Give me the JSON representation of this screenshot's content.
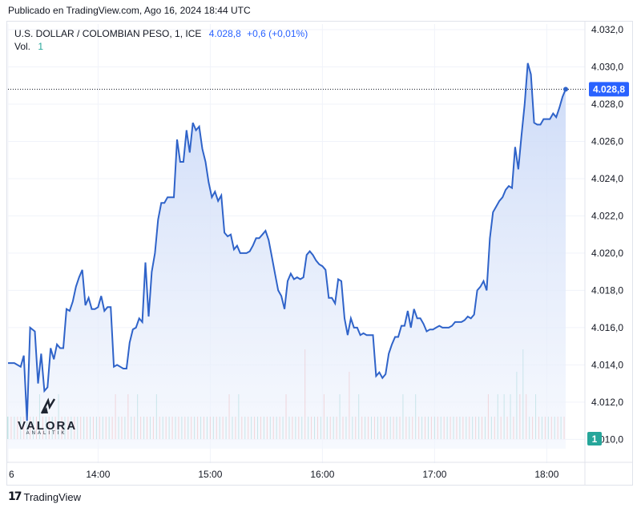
{
  "header": {
    "published": "Publicado en TradingView.com, Ago 16, 2024 18:44 UTC"
  },
  "legend": {
    "symbol": "U.S. DOLLAR / COLOMBIAN PESO, 1, ICE",
    "last": "4.028,8",
    "change": "+0,6 (+0,01%)",
    "vol_label": "Vol.",
    "vol_value": "1"
  },
  "price_label": "4.028,8",
  "volume_label": "1",
  "watermark": {
    "name": "VALORA",
    "sub": "ANALITIK"
  },
  "footer": {
    "brand": "TradingView"
  },
  "colors": {
    "line": "#2f63c9",
    "fill_top": "#c9d8f7",
    "fill_bottom": "#f1f5fd",
    "up": "#26a69a",
    "down": "#ef5350",
    "price_tag": "#2962ff"
  },
  "chart_data": {
    "type": "area",
    "y_ticks": [
      "4.032,0",
      "4.030,0",
      "4.028,0",
      "4.026,0",
      "4.024,0",
      "4.022,0",
      "4.020,0",
      "4.018,0",
      "4.016,0",
      "4.014,0",
      "4.012,0",
      "4.010,0"
    ],
    "x_ticks": [
      "6",
      "14:00",
      "15:00",
      "16:00",
      "17:00",
      "18:00"
    ],
    "ylim": [
      4009.5,
      4032.3
    ],
    "points": [
      [
        0,
        4014.1
      ],
      [
        4,
        4014.1
      ],
      [
        8,
        4013.9
      ],
      [
        10,
        4014.5
      ],
      [
        12,
        4011.0
      ],
      [
        14,
        4016.0
      ],
      [
        17,
        4015.8
      ],
      [
        19,
        4013.0
      ],
      [
        21,
        4014.6
      ],
      [
        23,
        4012.6
      ],
      [
        25,
        4012.8
      ],
      [
        27,
        4014.9
      ],
      [
        29,
        4014.3
      ],
      [
        31,
        4015.1
      ],
      [
        33,
        4014.9
      ],
      [
        35,
        4014.9
      ],
      [
        37,
        4017.0
      ],
      [
        39,
        4016.9
      ],
      [
        41,
        4017.4
      ],
      [
        43,
        4018.2
      ],
      [
        45,
        4018.7
      ],
      [
        47,
        4019.1
      ],
      [
        49,
        4017.2
      ],
      [
        51,
        4017.6
      ],
      [
        53,
        4017.0
      ],
      [
        55,
        4017.0
      ],
      [
        57,
        4017.1
      ],
      [
        59,
        4017.7
      ],
      [
        61,
        4016.9
      ],
      [
        63,
        4017.1
      ],
      [
        65,
        4017.1
      ],
      [
        67,
        4013.9
      ],
      [
        69,
        4014.0
      ],
      [
        71,
        4013.9
      ],
      [
        73,
        4013.8
      ],
      [
        75,
        4013.8
      ],
      [
        77,
        4015.2
      ],
      [
        79,
        4015.9
      ],
      [
        81,
        4016.0
      ],
      [
        83,
        4016.5
      ],
      [
        85,
        4016.3
      ],
      [
        87,
        4019.5
      ],
      [
        89,
        4016.6
      ],
      [
        91,
        4019.0
      ],
      [
        93,
        4020.0
      ],
      [
        95,
        4021.8
      ],
      [
        97,
        4022.7
      ],
      [
        99,
        4022.7
      ],
      [
        101,
        4023.0
      ],
      [
        103,
        4023.0
      ],
      [
        105,
        4023.0
      ],
      [
        107,
        4026.1
      ],
      [
        109,
        4024.9
      ],
      [
        111,
        4024.9
      ],
      [
        113,
        4026.6
      ],
      [
        115,
        4025.4
      ],
      [
        117,
        4027.0
      ],
      [
        119,
        4026.6
      ],
      [
        121,
        4026.8
      ],
      [
        123,
        4025.6
      ],
      [
        125,
        4024.9
      ],
      [
        127,
        4023.8
      ],
      [
        129,
        4023.0
      ],
      [
        131,
        4023.3
      ],
      [
        133,
        4022.8
      ],
      [
        135,
        4023.1
      ],
      [
        137,
        4021.1
      ],
      [
        139,
        4020.9
      ],
      [
        141,
        4021.0
      ],
      [
        143,
        4020.2
      ],
      [
        145,
        4020.4
      ],
      [
        147,
        4020.0
      ],
      [
        149,
        4020.0
      ],
      [
        151,
        4020.0
      ],
      [
        153,
        4020.1
      ],
      [
        155,
        4020.4
      ],
      [
        157,
        4020.8
      ],
      [
        159,
        4020.8
      ],
      [
        161,
        4021.0
      ],
      [
        163,
        4021.2
      ],
      [
        165,
        4020.7
      ],
      [
        167,
        4019.8
      ],
      [
        169,
        4018.9
      ],
      [
        171,
        4018.0
      ],
      [
        173,
        4017.7
      ],
      [
        175,
        4017.0
      ],
      [
        177,
        4018.5
      ],
      [
        179,
        4018.9
      ],
      [
        181,
        4018.6
      ],
      [
        183,
        4018.7
      ],
      [
        185,
        4018.6
      ],
      [
        187,
        4018.7
      ],
      [
        189,
        4019.9
      ],
      [
        191,
        4020.1
      ],
      [
        193,
        4019.9
      ],
      [
        195,
        4019.6
      ],
      [
        197,
        4019.4
      ],
      [
        199,
        4019.3
      ],
      [
        201,
        4019.1
      ],
      [
        203,
        4017.6
      ],
      [
        205,
        4017.6
      ],
      [
        207,
        4017.3
      ],
      [
        209,
        4018.6
      ],
      [
        211,
        4018.5
      ],
      [
        213,
        4016.5
      ],
      [
        215,
        4015.6
      ],
      [
        217,
        4016.5
      ],
      [
        219,
        4016.0
      ],
      [
        221,
        4016.0
      ],
      [
        223,
        4015.6
      ],
      [
        225,
        4015.7
      ],
      [
        227,
        4015.6
      ],
      [
        229,
        4015.6
      ],
      [
        231,
        4015.6
      ],
      [
        233,
        4013.4
      ],
      [
        235,
        4013.6
      ],
      [
        237,
        4013.3
      ],
      [
        239,
        4013.5
      ],
      [
        241,
        4014.6
      ],
      [
        243,
        4015.1
      ],
      [
        245,
        4015.5
      ],
      [
        247,
        4015.5
      ],
      [
        249,
        4016.1
      ],
      [
        251,
        4016.1
      ],
      [
        253,
        4016.9
      ],
      [
        255,
        4016.0
      ],
      [
        257,
        4017.0
      ],
      [
        259,
        4016.5
      ],
      [
        261,
        4016.5
      ],
      [
        263,
        4016.2
      ],
      [
        265,
        4015.8
      ],
      [
        267,
        4015.9
      ],
      [
        269,
        4015.9
      ],
      [
        271,
        4016.0
      ],
      [
        273,
        4016.1
      ],
      [
        275,
        4016.0
      ],
      [
        277,
        4016.0
      ],
      [
        279,
        4016.0
      ],
      [
        281,
        4016.1
      ],
      [
        283,
        4016.3
      ],
      [
        285,
        4016.3
      ],
      [
        287,
        4016.3
      ],
      [
        289,
        4016.4
      ],
      [
        291,
        4016.6
      ],
      [
        293,
        4016.5
      ],
      [
        295,
        4016.7
      ],
      [
        297,
        4018.0
      ],
      [
        299,
        4018.2
      ],
      [
        301,
        4018.5
      ],
      [
        303,
        4018.0
      ],
      [
        305,
        4020.8
      ],
      [
        307,
        4022.2
      ],
      [
        309,
        4022.5
      ],
      [
        311,
        4022.8
      ],
      [
        313,
        4023.0
      ],
      [
        315,
        4023.4
      ],
      [
        317,
        4023.6
      ],
      [
        319,
        4023.5
      ],
      [
        321,
        4025.7
      ],
      [
        323,
        4024.5
      ],
      [
        325,
        4026.3
      ],
      [
        327,
        4028.0
      ],
      [
        329,
        4030.2
      ],
      [
        331,
        4029.6
      ],
      [
        333,
        4027.0
      ],
      [
        335,
        4026.9
      ],
      [
        337,
        4026.9
      ],
      [
        339,
        4027.2
      ],
      [
        341,
        4027.2
      ],
      [
        343,
        4027.2
      ],
      [
        345,
        4027.5
      ],
      [
        347,
        4027.3
      ],
      [
        349,
        4027.8
      ],
      [
        351,
        4028.4
      ],
      [
        353,
        4028.8
      ]
    ],
    "x_range": [
      0,
      354
    ],
    "x_tick_positions": [
      0,
      57,
      128,
      199,
      270,
      341
    ],
    "volume": [
      [
        0,
        1,
        "up"
      ],
      [
        2,
        1,
        "down"
      ],
      [
        4,
        1,
        "up"
      ],
      [
        6,
        1,
        "down"
      ],
      [
        8,
        1,
        "up"
      ],
      [
        10,
        1,
        "down"
      ],
      [
        12,
        1,
        "up"
      ],
      [
        14,
        1,
        "down"
      ],
      [
        16,
        1,
        "up"
      ],
      [
        18,
        1,
        "down"
      ],
      [
        20,
        2,
        "up"
      ],
      [
        22,
        1,
        "down"
      ],
      [
        24,
        1,
        "up"
      ],
      [
        26,
        1,
        "down"
      ],
      [
        28,
        1,
        "up"
      ],
      [
        30,
        1,
        "down"
      ],
      [
        32,
        2,
        "up"
      ],
      [
        34,
        1,
        "down"
      ],
      [
        36,
        1,
        "up"
      ],
      [
        38,
        1,
        "down"
      ],
      [
        40,
        1,
        "up"
      ],
      [
        42,
        1,
        "down"
      ],
      [
        44,
        1,
        "up"
      ],
      [
        46,
        1,
        "down"
      ],
      [
        48,
        1,
        "up"
      ],
      [
        50,
        1,
        "down"
      ],
      [
        52,
        1,
        "up"
      ],
      [
        54,
        1,
        "down"
      ],
      [
        56,
        1,
        "up"
      ],
      [
        58,
        1,
        "down"
      ],
      [
        60,
        1,
        "up"
      ],
      [
        62,
        1,
        "down"
      ],
      [
        64,
        1,
        "up"
      ],
      [
        66,
        1,
        "down"
      ],
      [
        68,
        2,
        "down"
      ],
      [
        70,
        1,
        "up"
      ],
      [
        72,
        1,
        "down"
      ],
      [
        74,
        1,
        "up"
      ],
      [
        76,
        2,
        "down"
      ],
      [
        78,
        1,
        "up"
      ],
      [
        80,
        1,
        "down"
      ],
      [
        82,
        2,
        "up"
      ],
      [
        84,
        1,
        "down"
      ],
      [
        86,
        1,
        "up"
      ],
      [
        88,
        1,
        "down"
      ],
      [
        90,
        1,
        "up"
      ],
      [
        92,
        1,
        "down"
      ],
      [
        94,
        2,
        "up"
      ],
      [
        96,
        1,
        "down"
      ],
      [
        98,
        1,
        "up"
      ],
      [
        100,
        1,
        "down"
      ],
      [
        102,
        1,
        "up"
      ],
      [
        104,
        1,
        "down"
      ],
      [
        106,
        1,
        "up"
      ],
      [
        108,
        1,
        "down"
      ],
      [
        110,
        1,
        "up"
      ],
      [
        112,
        1,
        "down"
      ],
      [
        114,
        1,
        "up"
      ],
      [
        116,
        1,
        "down"
      ],
      [
        118,
        1,
        "up"
      ],
      [
        120,
        1,
        "down"
      ],
      [
        122,
        1,
        "up"
      ],
      [
        124,
        1,
        "down"
      ],
      [
        126,
        1,
        "up"
      ],
      [
        128,
        1,
        "down"
      ],
      [
        130,
        1,
        "up"
      ],
      [
        132,
        1,
        "down"
      ],
      [
        134,
        1,
        "up"
      ],
      [
        136,
        1,
        "down"
      ],
      [
        138,
        1,
        "up"
      ],
      [
        140,
        2,
        "down"
      ],
      [
        142,
        1,
        "up"
      ],
      [
        144,
        1,
        "down"
      ],
      [
        146,
        2,
        "up"
      ],
      [
        148,
        1,
        "down"
      ],
      [
        150,
        1,
        "up"
      ],
      [
        152,
        1,
        "down"
      ],
      [
        154,
        1,
        "up"
      ],
      [
        156,
        1,
        "down"
      ],
      [
        158,
        1,
        "up"
      ],
      [
        160,
        1,
        "down"
      ],
      [
        162,
        1,
        "up"
      ],
      [
        164,
        1,
        "down"
      ],
      [
        166,
        1,
        "up"
      ],
      [
        168,
        1,
        "down"
      ],
      [
        170,
        1,
        "up"
      ],
      [
        172,
        1,
        "down"
      ],
      [
        174,
        1,
        "up"
      ],
      [
        176,
        2,
        "down"
      ],
      [
        178,
        1,
        "up"
      ],
      [
        180,
        1,
        "down"
      ],
      [
        182,
        1,
        "up"
      ],
      [
        184,
        1,
        "down"
      ],
      [
        186,
        1,
        "up"
      ],
      [
        188,
        4,
        "down"
      ],
      [
        190,
        1,
        "up"
      ],
      [
        192,
        1,
        "down"
      ],
      [
        194,
        1,
        "up"
      ],
      [
        196,
        1,
        "down"
      ],
      [
        198,
        1,
        "up"
      ],
      [
        200,
        2,
        "down"
      ],
      [
        202,
        1,
        "up"
      ],
      [
        204,
        1,
        "down"
      ],
      [
        206,
        1,
        "up"
      ],
      [
        208,
        1,
        "down"
      ],
      [
        210,
        2,
        "up"
      ],
      [
        212,
        1,
        "down"
      ],
      [
        214,
        1,
        "up"
      ],
      [
        216,
        3,
        "down"
      ],
      [
        218,
        1,
        "up"
      ],
      [
        220,
        1,
        "down"
      ],
      [
        222,
        2,
        "up"
      ],
      [
        224,
        1,
        "down"
      ],
      [
        226,
        1,
        "up"
      ],
      [
        228,
        1,
        "down"
      ],
      [
        230,
        1,
        "up"
      ],
      [
        232,
        1,
        "down"
      ],
      [
        234,
        1,
        "up"
      ],
      [
        236,
        1,
        "down"
      ],
      [
        238,
        1,
        "up"
      ],
      [
        240,
        1,
        "down"
      ],
      [
        242,
        1,
        "up"
      ],
      [
        244,
        1,
        "down"
      ],
      [
        246,
        1,
        "up"
      ],
      [
        248,
        1,
        "down"
      ],
      [
        250,
        2,
        "up"
      ],
      [
        252,
        1,
        "down"
      ],
      [
        254,
        1,
        "up"
      ],
      [
        256,
        1,
        "down"
      ],
      [
        258,
        2,
        "up"
      ],
      [
        260,
        1,
        "down"
      ],
      [
        262,
        1,
        "up"
      ],
      [
        264,
        1,
        "down"
      ],
      [
        266,
        1,
        "up"
      ],
      [
        268,
        1,
        "down"
      ],
      [
        270,
        1,
        "up"
      ],
      [
        272,
        1,
        "down"
      ],
      [
        274,
        1,
        "up"
      ],
      [
        276,
        1,
        "down"
      ],
      [
        278,
        1,
        "up"
      ],
      [
        280,
        1,
        "down"
      ],
      [
        282,
        1,
        "up"
      ],
      [
        284,
        1,
        "down"
      ],
      [
        286,
        1,
        "up"
      ],
      [
        288,
        1,
        "down"
      ],
      [
        290,
        1,
        "up"
      ],
      [
        292,
        1,
        "down"
      ],
      [
        294,
        1,
        "up"
      ],
      [
        296,
        1,
        "down"
      ],
      [
        298,
        1,
        "up"
      ],
      [
        300,
        1,
        "down"
      ],
      [
        302,
        1,
        "up"
      ],
      [
        304,
        2,
        "down"
      ],
      [
        306,
        1,
        "up"
      ],
      [
        308,
        1,
        "down"
      ],
      [
        310,
        2,
        "up"
      ],
      [
        312,
        1,
        "down"
      ],
      [
        314,
        2,
        "up"
      ],
      [
        316,
        1,
        "down"
      ],
      [
        318,
        2,
        "up"
      ],
      [
        320,
        1,
        "down"
      ],
      [
        322,
        3,
        "up"
      ],
      [
        324,
        2,
        "down"
      ],
      [
        326,
        4,
        "up"
      ],
      [
        328,
        2,
        "down"
      ],
      [
        330,
        1,
        "up"
      ],
      [
        332,
        1,
        "down"
      ],
      [
        334,
        2,
        "up"
      ],
      [
        336,
        1,
        "down"
      ],
      [
        338,
        1,
        "up"
      ],
      [
        340,
        1,
        "down"
      ],
      [
        342,
        1,
        "up"
      ],
      [
        344,
        1,
        "down"
      ],
      [
        346,
        1,
        "up"
      ],
      [
        348,
        1,
        "down"
      ],
      [
        350,
        1,
        "up"
      ],
      [
        352,
        1,
        "down"
      ]
    ]
  }
}
